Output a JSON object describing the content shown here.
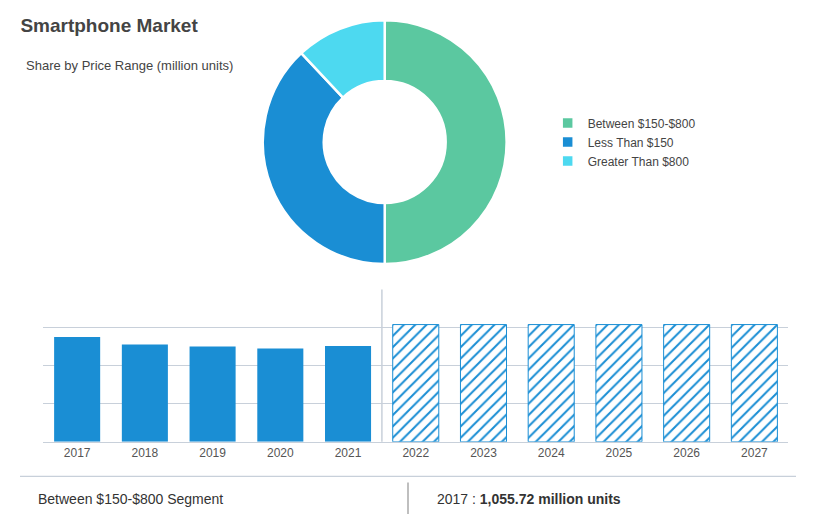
{
  "chart_data": [
    {
      "type": "pie",
      "title": "Smartphone Market",
      "subtitle": "Share by Price Range (million units)",
      "categories": [
        "Between $150-$800",
        "Less Than $150",
        "Greater Than $800"
      ],
      "values": [
        50,
        38,
        12
      ],
      "colors": [
        "#5bc8a0",
        "#1a8ed4",
        "#4dd9f0"
      ],
      "legend": "right"
    },
    {
      "type": "bar",
      "categories": [
        "2017",
        "2018",
        "2019",
        "2020",
        "2021",
        "2022",
        "2023",
        "2024",
        "2025",
        "2026",
        "2027"
      ],
      "series": [
        {
          "color": "#1a8ed4",
          "marker": "solid",
          "values": [
            1055.72,
            980,
            960,
            940,
            965,
            null,
            null,
            null,
            null,
            null,
            null
          ]
        },
        {
          "color": "#1a8ed4",
          "marker": "hatched",
          "values": [
            null,
            null,
            null,
            null,
            null,
            1180,
            1180,
            1180,
            1180,
            1180,
            1180
          ]
        }
      ],
      "ylim": [
        0,
        1534
      ],
      "yticks": [
        0,
        383.5,
        767,
        1150.5,
        1534
      ],
      "grid": true,
      "tick_labels": "x",
      "annotations": [
        "Between $150-$800 Segment",
        "2017 :",
        "1,055.72 million units"
      ]
    }
  ]
}
